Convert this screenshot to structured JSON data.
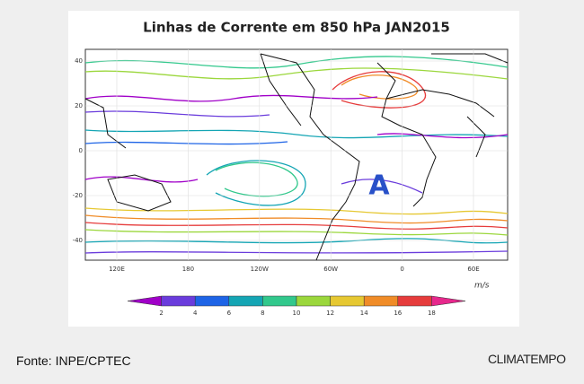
{
  "map": {
    "title": "Linhas de Corrente em 850 hPa JAN2015",
    "lat_ticks": [
      40,
      20,
      0,
      -20,
      -40
    ],
    "lon_ticks": [
      "120E",
      "180",
      "120W",
      "60W",
      "0",
      "60E"
    ],
    "annotation": "A",
    "colorbar": {
      "labels": [
        2,
        4,
        6,
        8,
        10,
        12,
        14,
        16,
        18
      ],
      "unit": "m/s",
      "colors": [
        "#a000c8",
        "#6a3cdc",
        "#1e64e6",
        "#14a5b4",
        "#32c88c",
        "#9bd73c",
        "#e6c832",
        "#f08c28",
        "#e63c3c",
        "#e6288c"
      ]
    }
  },
  "source": "Fonte: INPE/CPTEC",
  "logo": "CLIMATEMPO"
}
